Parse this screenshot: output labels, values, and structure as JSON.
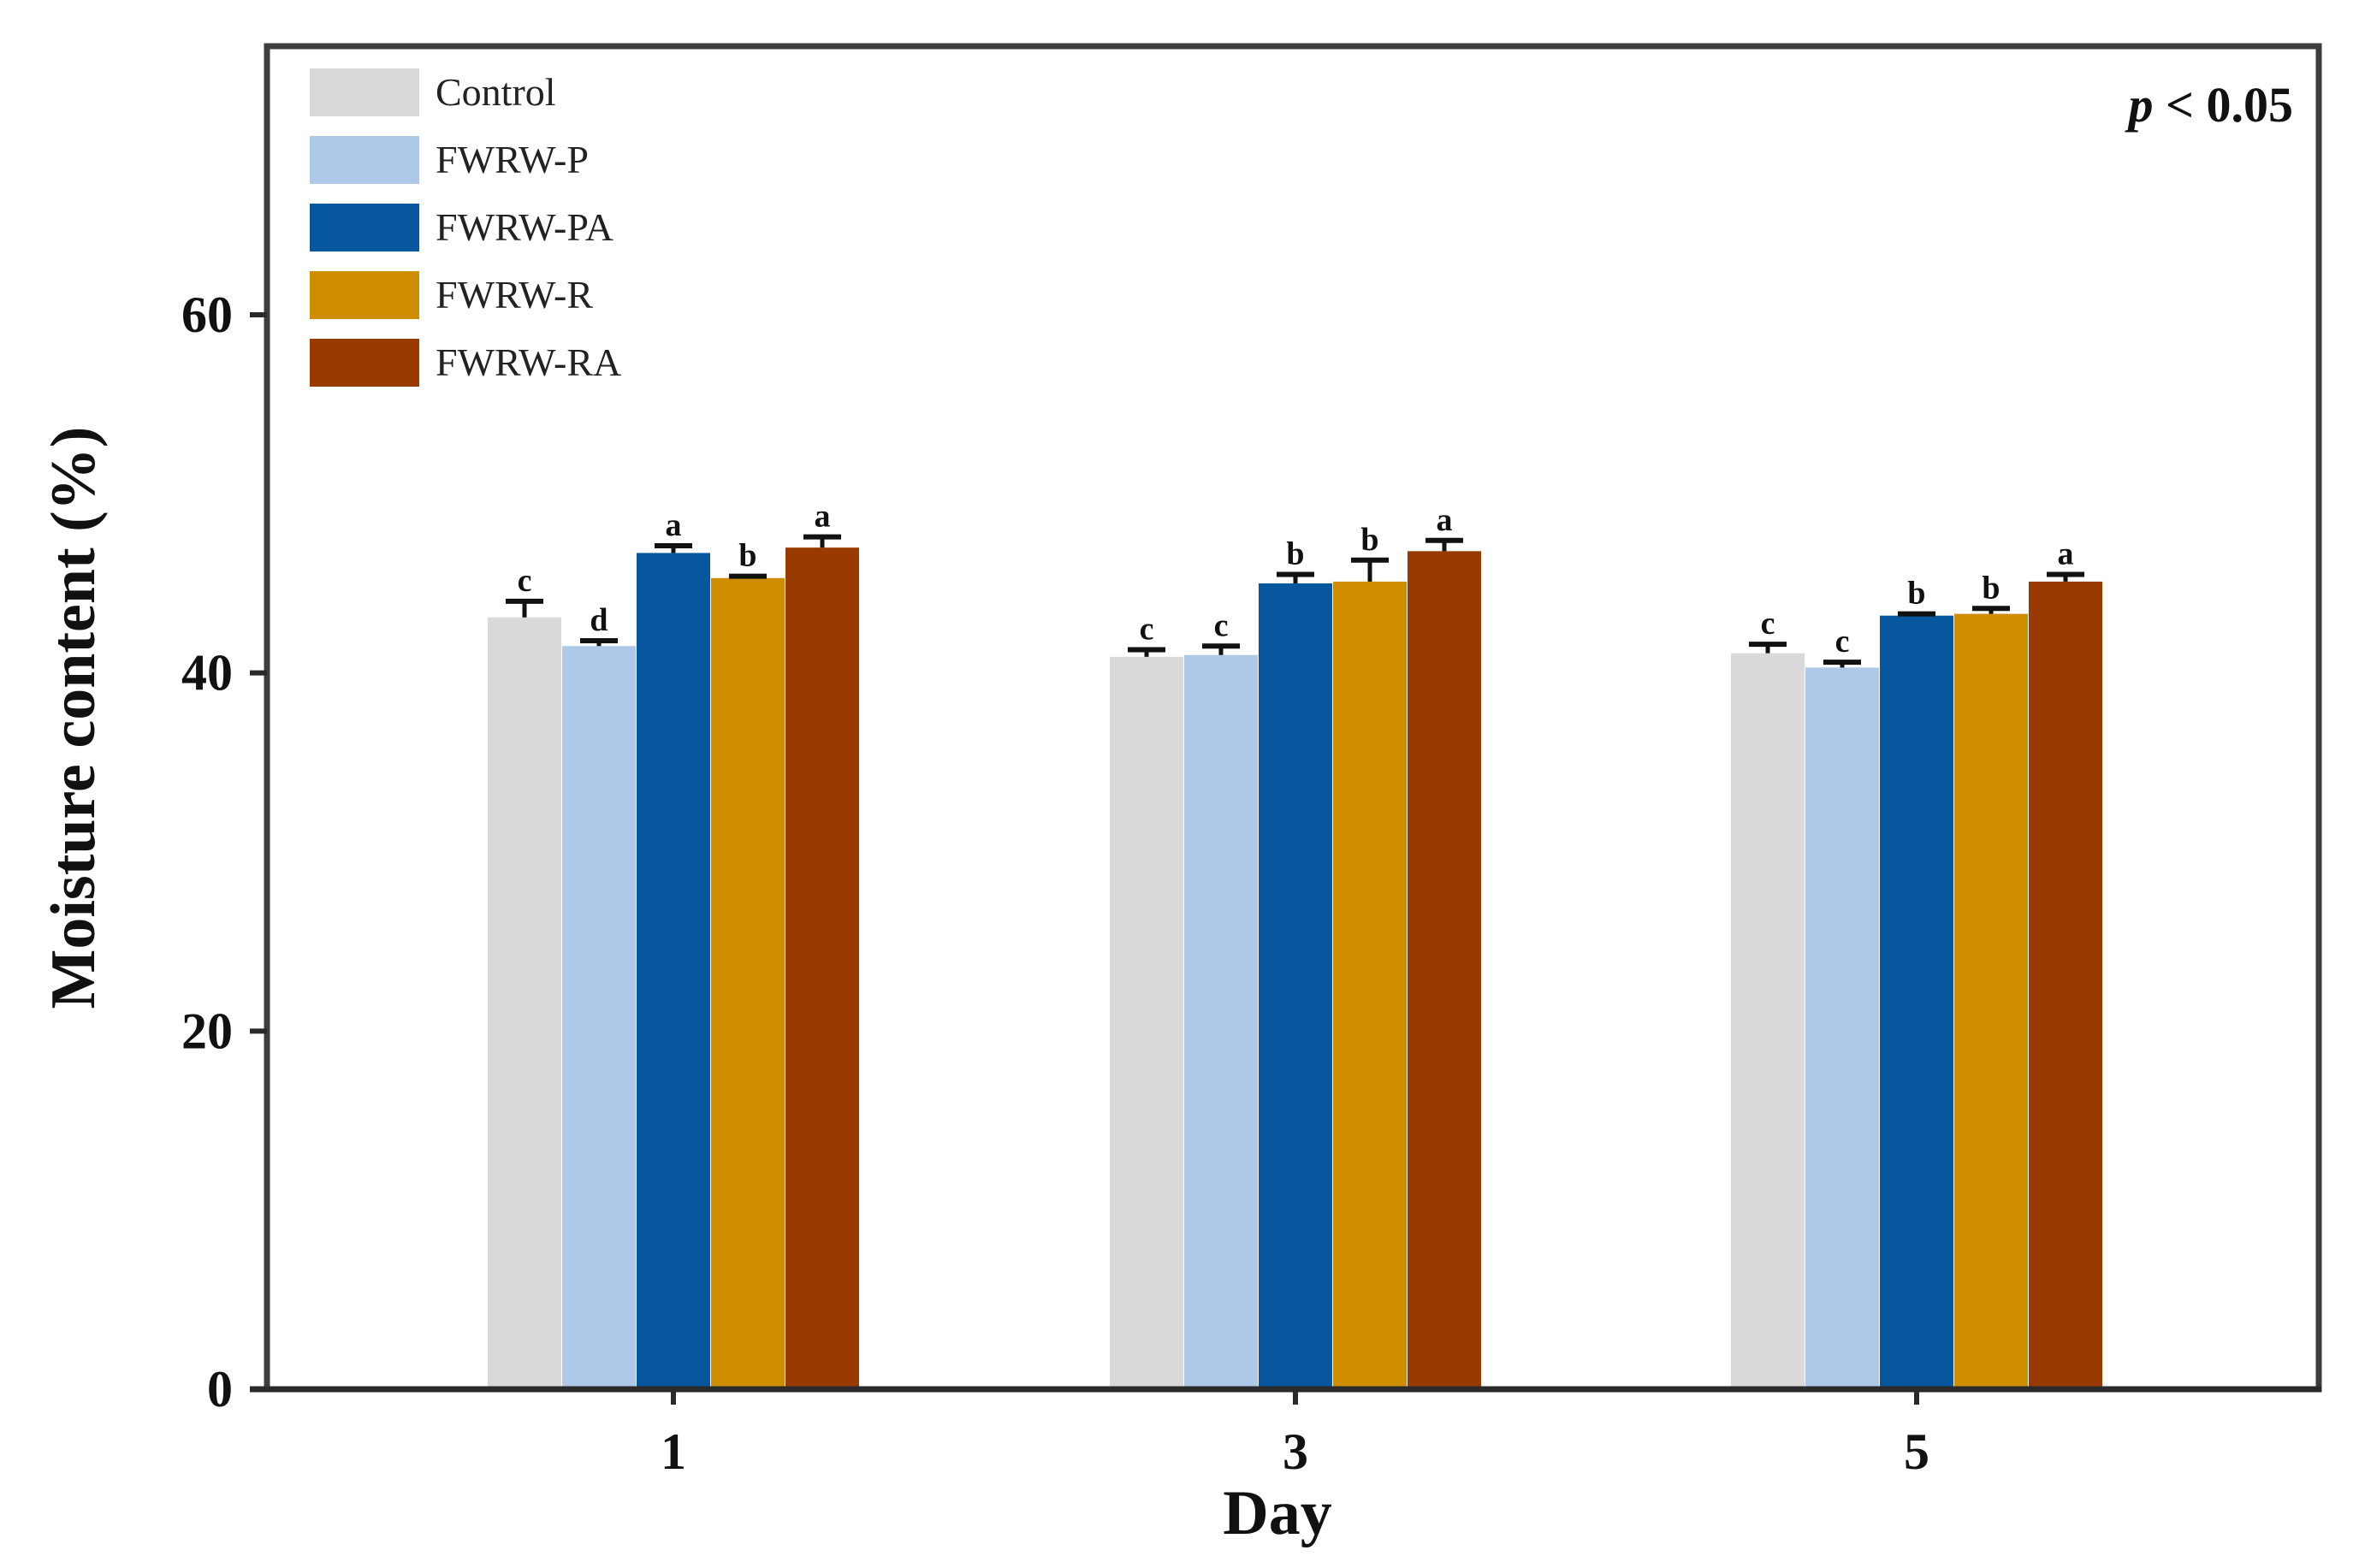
{
  "chart_data": {
    "type": "bar",
    "title": "",
    "xlabel": "Day",
    "ylabel": "Moisture content (%)",
    "categories": [
      "1",
      "3",
      "5"
    ],
    "ylim": [
      0,
      75
    ],
    "yticks": [
      0,
      20,
      40,
      60
    ],
    "annotation": {
      "italic_part": "p",
      "rest": " < 0.05"
    },
    "legend_position": "top-left",
    "series": [
      {
        "name": "Control",
        "color": "#d9d9d9",
        "values": [
          43.1,
          40.9,
          41.1
        ],
        "errors": [
          0.9,
          0.4,
          0.5
        ],
        "labels": [
          "c",
          "c",
          "c"
        ]
      },
      {
        "name": "FWRW-P",
        "color": "#aec8e8",
        "values": [
          41.5,
          41.0,
          40.3
        ],
        "errors": [
          0.3,
          0.5,
          0.3
        ],
        "labels": [
          "d",
          "c",
          "c"
        ]
      },
      {
        "name": "FWRW-PA",
        "color": "#06579e",
        "values": [
          46.7,
          45.0,
          43.2
        ],
        "errors": [
          0.4,
          0.5,
          0.1
        ],
        "labels": [
          "a",
          "b",
          "b"
        ]
      },
      {
        "name": "FWRW-R",
        "color": "#cf8e00",
        "values": [
          45.3,
          45.1,
          43.3
        ],
        "errors": [
          0.1,
          1.2,
          0.3
        ],
        "labels": [
          "b",
          "b",
          "b"
        ]
      },
      {
        "name": "FWRW-RA",
        "color": "#993a00",
        "values": [
          47.0,
          46.8,
          45.1
        ],
        "errors": [
          0.6,
          0.6,
          0.4
        ],
        "labels": [
          "a",
          "a",
          "a"
        ]
      }
    ]
  }
}
